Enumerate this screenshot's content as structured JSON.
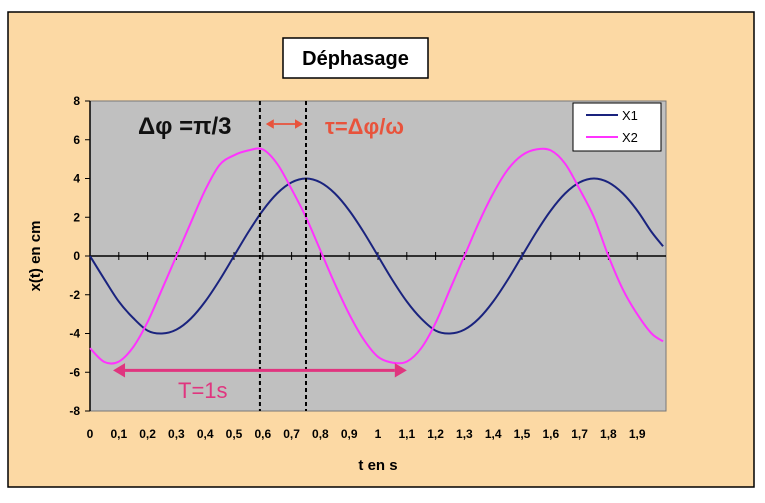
{
  "chart_data": {
    "type": "line",
    "title": "Déphasage",
    "xlabel": "t en s",
    "ylabel": "x(t) en cm",
    "xlim": [
      0,
      2
    ],
    "ylim": [
      -8,
      8
    ],
    "x_ticks": [
      "0",
      "0,1",
      "0,2",
      "0,3",
      "0,4",
      "0,5",
      "0,6",
      "0,7",
      "0,8",
      "0,9",
      "1",
      "1,1",
      "1,2",
      "1,3",
      "1,4",
      "1,5",
      "1,6",
      "1,7",
      "1,8",
      "1,9"
    ],
    "y_ticks": [
      "-8",
      "-6",
      "-4",
      "-2",
      "0",
      "2",
      "4",
      "6",
      "8"
    ],
    "grid": false,
    "legend_position": "top-right",
    "series": [
      {
        "name": "X1",
        "color": "#1a237e",
        "x": [
          0,
          0.05,
          0.1,
          0.15,
          0.2,
          0.25,
          0.3,
          0.35,
          0.4,
          0.45,
          0.5,
          0.55,
          0.6,
          0.65,
          0.7,
          0.75,
          0.8,
          0.85,
          0.9,
          0.95,
          1.0,
          1.05,
          1.1,
          1.15,
          1.2,
          1.25,
          1.3,
          1.35,
          1.4,
          1.45,
          1.5,
          1.55,
          1.6,
          1.65,
          1.7,
          1.75,
          1.8,
          1.85,
          1.9,
          1.95,
          1.99
        ],
        "y": [
          0,
          -1.2,
          -2.35,
          -3.2,
          -3.85,
          -4.0,
          -3.8,
          -3.23,
          -2.35,
          -1.24,
          0,
          1.24,
          2.35,
          3.23,
          3.8,
          4.0,
          3.8,
          3.23,
          2.35,
          1.24,
          0,
          -1.24,
          -2.35,
          -3.23,
          -3.85,
          -4.0,
          -3.8,
          -3.23,
          -2.35,
          -1.24,
          0,
          1.24,
          2.35,
          3.23,
          3.8,
          4.0,
          3.8,
          3.23,
          2.35,
          1.24,
          0.5
        ]
      },
      {
        "name": "X2",
        "color": "#ff33ff",
        "x": [
          0,
          0.05,
          0.1,
          0.15,
          0.2,
          0.25,
          0.3,
          0.35,
          0.4,
          0.45,
          0.5,
          0.55,
          0.6,
          0.65,
          0.7,
          0.75,
          0.8,
          0.85,
          0.9,
          0.95,
          1.0,
          1.05,
          1.1,
          1.15,
          1.2,
          1.25,
          1.3,
          1.35,
          1.4,
          1.45,
          1.5,
          1.55,
          1.6,
          1.65,
          1.7,
          1.75,
          1.8,
          1.85,
          1.9,
          1.95,
          1.99
        ],
        "y": [
          -4.76,
          -5.47,
          -5.45,
          -4.7,
          -3.4,
          -1.72,
          0,
          1.72,
          3.4,
          4.7,
          5.2,
          5.45,
          5.5,
          4.76,
          3.45,
          2.0,
          0.29,
          -1.43,
          -3.0,
          -4.3,
          -5.2,
          -5.5,
          -5.45,
          -4.76,
          -3.45,
          -1.72,
          0,
          1.72,
          3.23,
          4.45,
          5.2,
          5.5,
          5.45,
          4.76,
          3.45,
          2.0,
          0,
          -1.72,
          -3.0,
          -4.0,
          -4.4
        ]
      }
    ],
    "annotations": {
      "delta_phi": "Δφ =π/3",
      "tau": "τ=Δφ/ω",
      "period": "T=1s"
    },
    "markers": {
      "vline_1_x": 0.59,
      "vline_2_x": 0.75,
      "tau_arrow": [
        0.6,
        0.75
      ],
      "period_arrow": [
        0.08,
        1.1
      ],
      "period_arrow_y": -5.9
    },
    "colors": {
      "outer_background": "#fcd9a4",
      "plot_background": "#c0c0c0",
      "tau_color": "#e8533c",
      "period_color": "#e0357f",
      "delta_phi_color": "#111111"
    }
  }
}
